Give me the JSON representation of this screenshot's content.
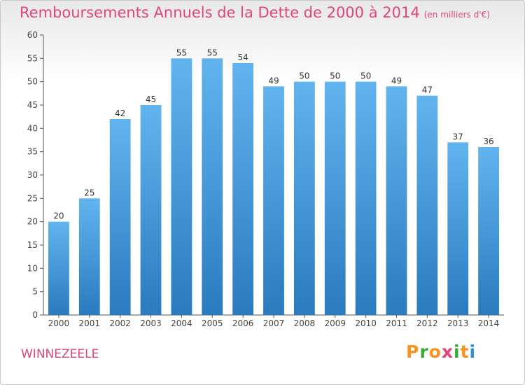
{
  "title": "Remboursements Annuels de la Dette de 2000 à 2014",
  "subtitle": "(en milliers d'€)",
  "commune": "WINNEZEELE",
  "brand": {
    "letters": [
      "P",
      "r",
      "o",
      "x",
      "i",
      "t",
      "i"
    ],
    "colors": [
      "#f7931e",
      "#3aaa35",
      "#f7931e",
      "#e0457b",
      "#3aaa35",
      "#f7931e",
      "#2e8fd6"
    ]
  },
  "colors": {
    "bar_top": "#62b4ee",
    "bar_bottom": "#2a7bbf",
    "accent": "#e0457b",
    "axis": "#555555"
  },
  "chart_data": {
    "type": "bar",
    "categories": [
      "2000",
      "2001",
      "2002",
      "2003",
      "2004",
      "2005",
      "2006",
      "2007",
      "2008",
      "2009",
      "2010",
      "2011",
      "2012",
      "2013",
      "2014"
    ],
    "values": [
      20,
      25,
      42,
      45,
      55,
      55,
      54,
      49,
      50,
      50,
      50,
      49,
      47,
      37,
      36
    ],
    "ylim": [
      0,
      60
    ],
    "yticks": [
      0,
      5,
      10,
      15,
      20,
      25,
      30,
      35,
      40,
      45,
      50,
      55,
      60
    ],
    "grid": false
  }
}
